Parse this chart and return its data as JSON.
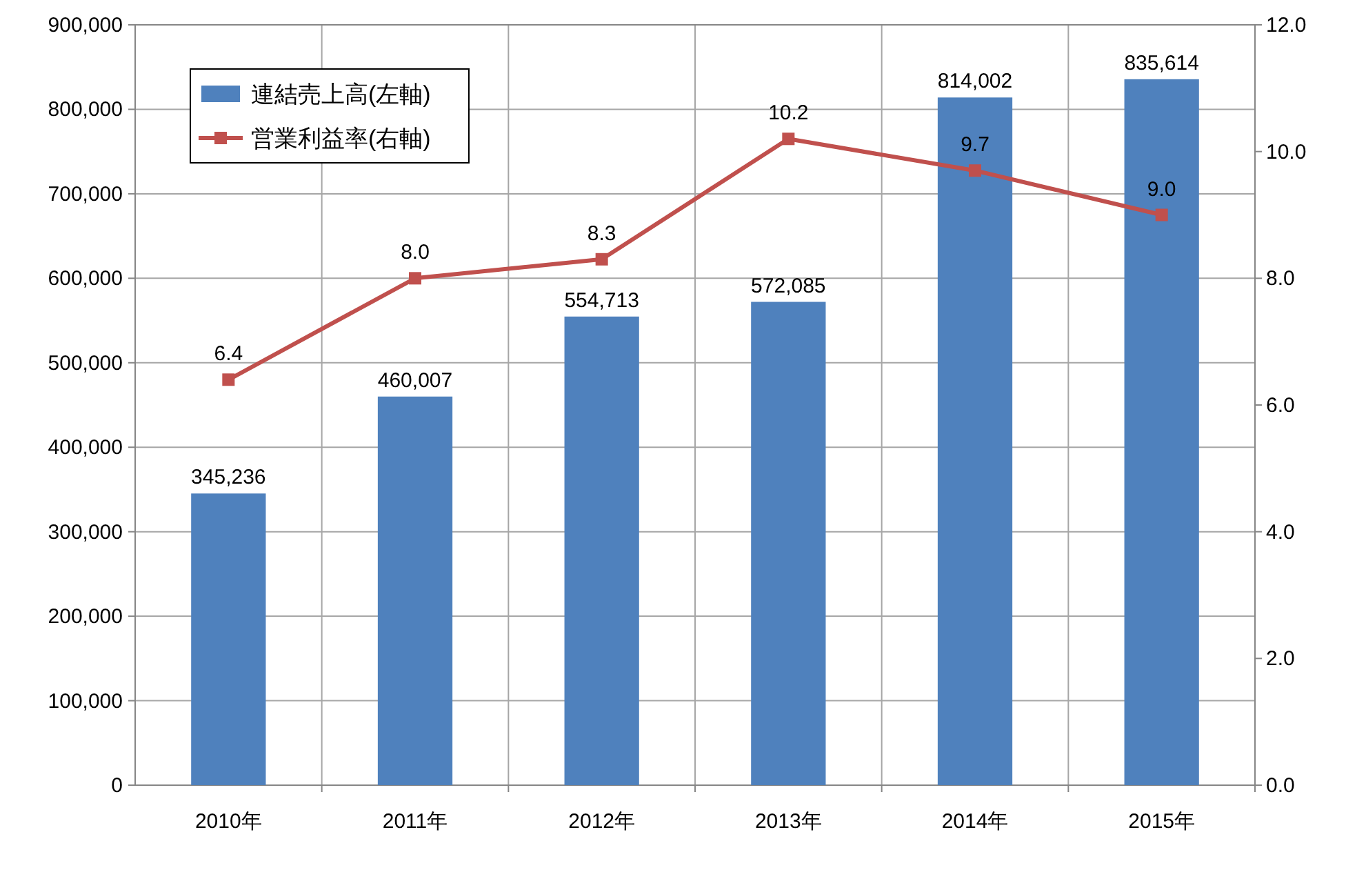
{
  "chart_data": {
    "type": "bar",
    "categories": [
      "2010年",
      "2011年",
      "2012年",
      "2013年",
      "2014年",
      "2015年"
    ],
    "series": [
      {
        "name": "連結売上高(左軸)",
        "color": "#4f81bd",
        "values": [
          345236,
          460007,
          554713,
          572085,
          814002,
          835614
        ],
        "value_labels": [
          "345,236",
          "460,007",
          "554,713",
          "572,085",
          "814,002",
          "835,614"
        ]
      },
      {
        "name": "営業利益率(右軸)",
        "type": "line",
        "axis": "y2",
        "color": "#c0504d",
        "marker": "square",
        "values": [
          6.4,
          8.0,
          8.3,
          10.2,
          9.7,
          9.0
        ],
        "value_labels": [
          "6.4",
          "8.0",
          "8.3",
          "10.2",
          "9.7",
          "9.0"
        ]
      }
    ],
    "ylim": [
      0,
      900000
    ],
    "yticks": [
      {
        "value": 0,
        "label": "0"
      },
      {
        "value": 100000,
        "label": "100,000"
      },
      {
        "value": 200000,
        "label": "200,000"
      },
      {
        "value": 300000,
        "label": "300,000"
      },
      {
        "value": 400000,
        "label": "400,000"
      },
      {
        "value": 500000,
        "label": "500,000"
      },
      {
        "value": 600000,
        "label": "600,000"
      },
      {
        "value": 700000,
        "label": "700,000"
      },
      {
        "value": 800000,
        "label": "800,000"
      },
      {
        "value": 900000,
        "label": "900,000"
      }
    ],
    "y2lim": [
      0,
      12
    ],
    "y2ticks": [
      {
        "value": 0,
        "label": "0.0"
      },
      {
        "value": 2,
        "label": "2.0"
      },
      {
        "value": 4,
        "label": "4.0"
      },
      {
        "value": 6,
        "label": "6.0"
      },
      {
        "value": 8,
        "label": "8.0"
      },
      {
        "value": 10,
        "label": "10.0"
      },
      {
        "value": 12,
        "label": "12.0"
      }
    ],
    "grid": true,
    "legend": "top left"
  }
}
